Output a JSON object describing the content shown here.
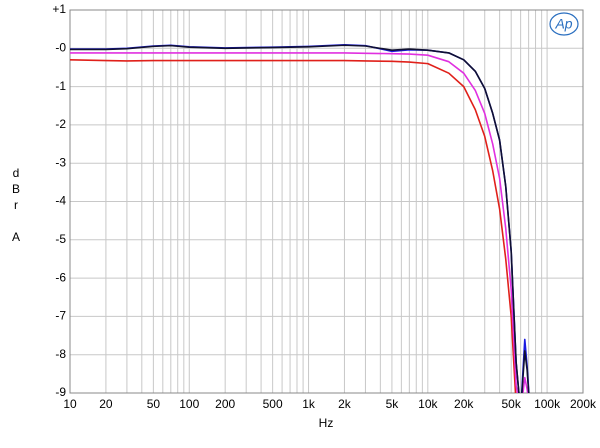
{
  "chart_data": {
    "type": "line",
    "ylabel": "dBr A",
    "xlabel": "Hz",
    "logo": "Ap",
    "log_x": true,
    "grid": true,
    "xlim": [
      10,
      200000
    ],
    "ylim": [
      -9,
      1
    ],
    "xticks": [
      10,
      20,
      50,
      100,
      200,
      500,
      {
        "value": 1000,
        "label": "1k"
      },
      {
        "value": 2000,
        "label": "2k"
      },
      {
        "value": 5000,
        "label": "5k"
      },
      {
        "value": 10000,
        "label": "10k"
      },
      {
        "value": 20000,
        "label": "20k"
      },
      {
        "value": 50000,
        "label": "50k"
      },
      {
        "value": 100000,
        "label": "100k"
      },
      {
        "value": 200000,
        "label": "200k"
      }
    ],
    "xgrid": [
      10,
      20,
      30,
      40,
      50,
      60,
      70,
      80,
      90,
      100,
      200,
      300,
      400,
      500,
      600,
      700,
      800,
      900,
      1000,
      2000,
      3000,
      4000,
      5000,
      6000,
      7000,
      8000,
      9000,
      10000,
      20000,
      30000,
      40000,
      50000,
      60000,
      70000,
      80000,
      90000,
      100000,
      200000
    ],
    "yticks": [
      {
        "value": 1,
        "label": "+1"
      },
      {
        "value": 0,
        "label": "-0"
      },
      -1,
      -2,
      -3,
      -4,
      -5,
      -6,
      -7,
      -8,
      -9
    ],
    "x": [
      10,
      20,
      30,
      50,
      70,
      100,
      200,
      500,
      1000,
      2000,
      3000,
      5000,
      7000,
      10000,
      15000,
      20000,
      25000,
      30000,
      35000,
      40000,
      45000,
      50000,
      55000,
      60000,
      65000,
      68000,
      72000
    ],
    "series": [
      {
        "color": "#e0201a",
        "values": [
          -0.3,
          -0.32,
          -0.33,
          -0.32,
          -0.32,
          -0.32,
          -0.32,
          -0.32,
          -0.32,
          -0.32,
          -0.33,
          -0.34,
          -0.36,
          -0.4,
          -0.65,
          -1.0,
          -1.6,
          -2.3,
          -3.2,
          -4.2,
          -5.5,
          -7.0,
          -9.3,
          -9.5,
          -9.5,
          -9.5,
          -9.5
        ]
      },
      {
        "color": "#e030e0",
        "values": [
          -0.12,
          -0.12,
          -0.12,
          -0.12,
          -0.12,
          -0.12,
          -0.12,
          -0.12,
          -0.12,
          -0.12,
          -0.13,
          -0.14,
          -0.15,
          -0.18,
          -0.35,
          -0.65,
          -1.1,
          -1.7,
          -2.5,
          -3.4,
          -4.7,
          -6.3,
          -8.8,
          -9.5,
          -8.6,
          -8.9,
          -9.5
        ]
      },
      {
        "color": "#1a1ae0",
        "values": [
          -0.02,
          -0.02,
          0.0,
          0.06,
          0.08,
          0.04,
          0.01,
          0.03,
          0.05,
          0.09,
          0.07,
          -0.08,
          -0.04,
          -0.05,
          -0.12,
          -0.3,
          -0.6,
          -1.05,
          -1.7,
          -2.4,
          -3.6,
          -5.3,
          -8.2,
          -9.5,
          -7.6,
          -8.3,
          -9.5
        ]
      },
      {
        "color": "#101030",
        "values": [
          -0.03,
          -0.03,
          -0.01,
          0.05,
          0.07,
          0.03,
          0.0,
          0.02,
          0.04,
          0.08,
          0.06,
          -0.05,
          -0.02,
          -0.05,
          -0.12,
          -0.3,
          -0.6,
          -1.05,
          -1.7,
          -2.4,
          -3.6,
          -5.3,
          -8.2,
          -9.5,
          -7.9,
          -8.4,
          -9.5
        ]
      }
    ]
  }
}
